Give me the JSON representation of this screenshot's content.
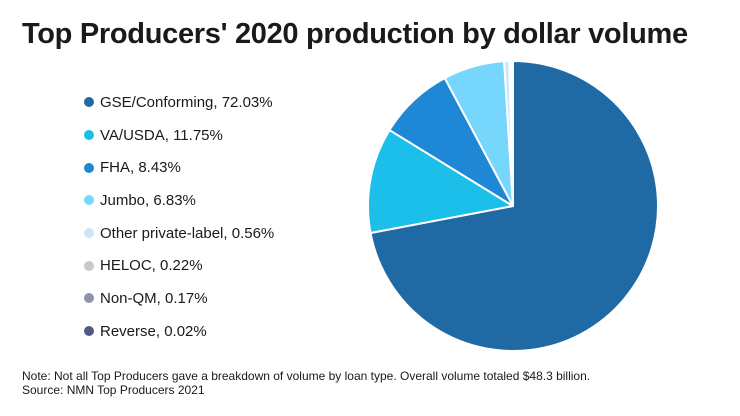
{
  "chart_data": {
    "type": "pie",
    "title": "Top Producers' 2020 production by dollar volume",
    "slices": [
      {
        "label": "GSE/Conforming, 72.03%",
        "value": 72.03,
        "color": "#1f6aa5"
      },
      {
        "label": "VA/USDA, 11.75%",
        "value": 11.75,
        "color": "#1bbfea"
      },
      {
        "label": "FHA, 8.43%",
        "value": 8.43,
        "color": "#1e88d6"
      },
      {
        "label": "Jumbo, 6.83%",
        "value": 6.83,
        "color": "#76d6fb"
      },
      {
        "label": "Other private-label, 0.56%",
        "value": 0.56,
        "color": "#cfe3f7"
      },
      {
        "label": "HELOC, 0.22%",
        "value": 0.22,
        "color": "#c9c9c9"
      },
      {
        "label": "Non-QM, 0.17%",
        "value": 0.17,
        "color": "#8f93a8"
      },
      {
        "label": "Reverse, 0.02%",
        "value": 0.02,
        "color": "#4f5a85"
      }
    ],
    "legend_position": "left"
  },
  "notes": {
    "note": "Note: Not all Top Producers gave a breakdown of volume by loan type. Overall volume totaled $48.3 billion.",
    "source": "Source: NMN Top Producers 2021"
  }
}
